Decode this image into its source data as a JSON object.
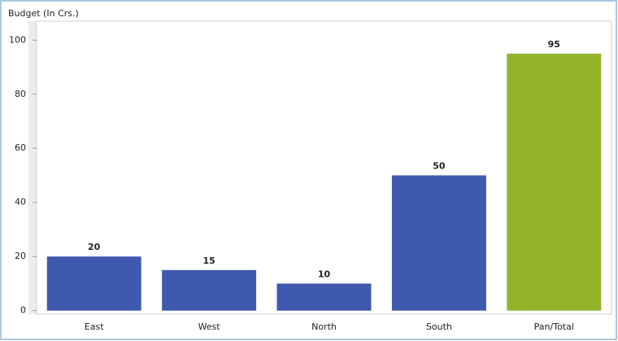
{
  "chart_data": {
    "type": "bar",
    "title": "Budget (In Crs.)",
    "categories": [
      "East",
      "West",
      "North",
      "South",
      "Pan/Total"
    ],
    "values": [
      20,
      15,
      10,
      50,
      95
    ],
    "colors": [
      "#3e59ae",
      "#3e59ae",
      "#3e59ae",
      "#3e59ae",
      "#92b42a"
    ],
    "ylim": [
      -1,
      107
    ],
    "yticks": [
      0,
      20,
      40,
      60,
      80,
      100
    ],
    "grid": false
  }
}
